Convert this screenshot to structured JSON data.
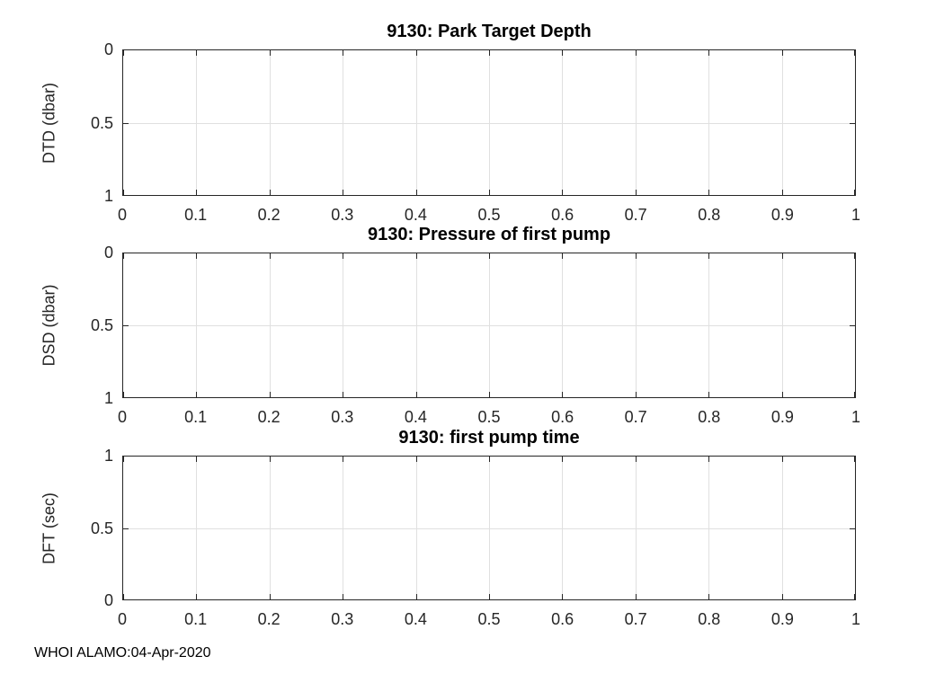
{
  "figure": {
    "footer": "WHOI ALAMO:04-Apr-2020",
    "background": "#ffffff"
  },
  "colors": {
    "axis": "#262626",
    "grid": "#e0e0e0",
    "title": "#000000",
    "tick_label": "#262626"
  },
  "chart_data": [
    {
      "type": "line",
      "title": "9130: Park Target Depth",
      "xlabel": "",
      "ylabel": "DTD (dbar)",
      "xlim": [
        0,
        1
      ],
      "ylim": [
        0,
        1
      ],
      "y_axis_inverted": true,
      "grid": true,
      "xtick_labels": [
        "0",
        "0.1",
        "0.2",
        "0.3",
        "0.4",
        "0.5",
        "0.6",
        "0.7",
        "0.8",
        "0.9",
        "1"
      ],
      "ytick_labels_top_to_bottom": [
        "0",
        "0.5",
        "1"
      ],
      "series": []
    },
    {
      "type": "line",
      "title": "9130: Pressure of first pump",
      "xlabel": "",
      "ylabel": "DSD (dbar)",
      "xlim": [
        0,
        1
      ],
      "ylim": [
        0,
        1
      ],
      "y_axis_inverted": true,
      "grid": true,
      "xtick_labels": [
        "0",
        "0.1",
        "0.2",
        "0.3",
        "0.4",
        "0.5",
        "0.6",
        "0.7",
        "0.8",
        "0.9",
        "1"
      ],
      "ytick_labels_top_to_bottom": [
        "0",
        "0.5",
        "1"
      ],
      "series": []
    },
    {
      "type": "line",
      "title": "9130: first pump time",
      "xlabel": "",
      "ylabel": "DFT (sec)",
      "xlim": [
        0,
        1
      ],
      "ylim": [
        0,
        1
      ],
      "y_axis_inverted": false,
      "grid": true,
      "xtick_labels": [
        "0",
        "0.1",
        "0.2",
        "0.3",
        "0.4",
        "0.5",
        "0.6",
        "0.7",
        "0.8",
        "0.9",
        "1"
      ],
      "ytick_labels_top_to_bottom": [
        "1",
        "0.5",
        "0"
      ],
      "series": []
    }
  ]
}
